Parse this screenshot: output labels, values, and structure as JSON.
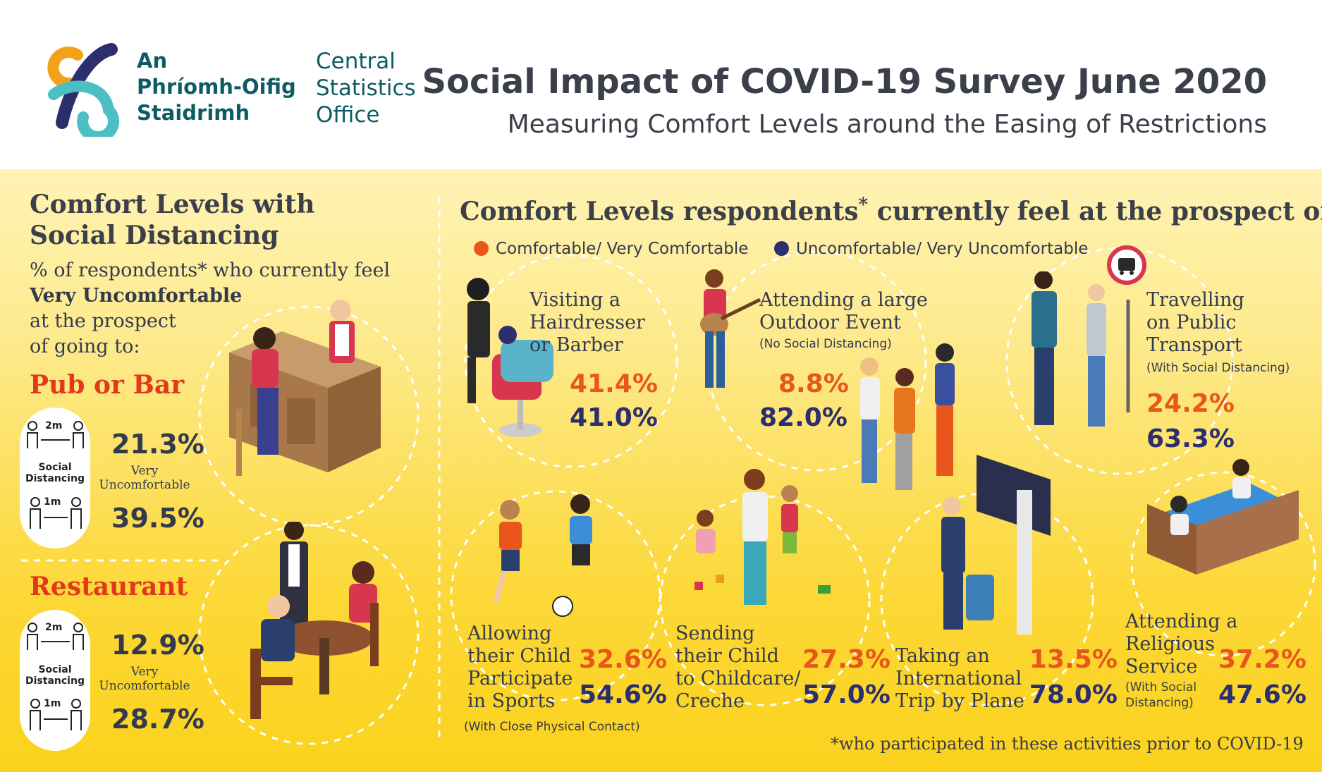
{
  "header": {
    "logo_irish_lines": [
      "An",
      "Phríomh-Oifig",
      "Staidrimh"
    ],
    "logo_english_lines": [
      "Central",
      "Statistics",
      "Office"
    ],
    "title": "Social Impact of COVID-19 Survey June 2020",
    "subtitle": "Measuring Comfort Levels around the Easing of Restrictions"
  },
  "left_panel": {
    "heading_lines": [
      "Comfort Levels with",
      "Social Distancing"
    ],
    "respondents_line1": "% of respondents* who currently feel",
    "respondents_bold": "Very Uncomfortable",
    "respondents_line3": "at the prospect",
    "respondents_line4": "of going to:",
    "social_distancing_label_lines": [
      "Social",
      "Distancing"
    ],
    "distance_2m": "2m",
    "distance_1m": "1m",
    "very_uncomfortable_lines": [
      "Very",
      "Uncomfortable"
    ],
    "venues": [
      {
        "name": "Pub or Bar",
        "pct_2m": "21.3%",
        "pct_1m": "39.5%"
      },
      {
        "name": "Restaurant",
        "pct_2m": "12.9%",
        "pct_1m": "28.7%"
      }
    ]
  },
  "right_panel": {
    "heading": "Comfort Levels respondents",
    "heading_star": "*",
    "heading_tail": "currently feel at the prospect of",
    "legend": {
      "comfortable": "Comfortable/ Very Comfortable",
      "uncomfortable": "Uncomfortable/ Very Uncomfortable"
    },
    "activities": [
      {
        "lines": [
          "Visiting  a",
          "Hairdresser",
          "or Barber"
        ],
        "note": "",
        "comfortable": "41.4%",
        "uncomfortable": "41.0%"
      },
      {
        "lines": [
          "Attending a large",
          "Outdoor Event"
        ],
        "note": "(No Social Distancing)",
        "comfortable": "8.8%",
        "uncomfortable": "82.0%"
      },
      {
        "lines": [
          "Travelling",
          "on Public",
          "Transport"
        ],
        "note": "(With Social Distancing)",
        "comfortable": "24.2%",
        "uncomfortable": "63.3%"
      },
      {
        "lines": [
          "Allowing",
          "their Child",
          "Participate",
          "in Sports"
        ],
        "note": "(With Close Physical Contact)",
        "comfortable": "32.6%",
        "uncomfortable": "54.6%"
      },
      {
        "lines": [
          "Sending",
          "their Child",
          "to Childcare/",
          "Creche"
        ],
        "note": "",
        "comfortable": "27.3%",
        "uncomfortable": "57.0%"
      },
      {
        "lines": [
          "Taking an",
          "International",
          "Trip by Plane"
        ],
        "note": "",
        "comfortable": "13.5%",
        "uncomfortable": "78.0%"
      },
      {
        "lines": [
          "Attending a",
          "Religious",
          "Service"
        ],
        "note_lines": [
          "(With Social",
          "Distancing)"
        ],
        "comfortable": "37.2%",
        "uncomfortable": "47.6%"
      }
    ]
  },
  "footnote": "*who participated in these activities prior to COVID-19",
  "colors": {
    "comfortable": "#e8561c",
    "uncomfortable": "#2b2f6e",
    "venue_red": "#e0391b",
    "logo_teal": "#0d5c63",
    "logo_orange": "#f2a11a",
    "logo_navy": "#2b2f6e",
    "logo_cyan": "#4bbfc3"
  }
}
